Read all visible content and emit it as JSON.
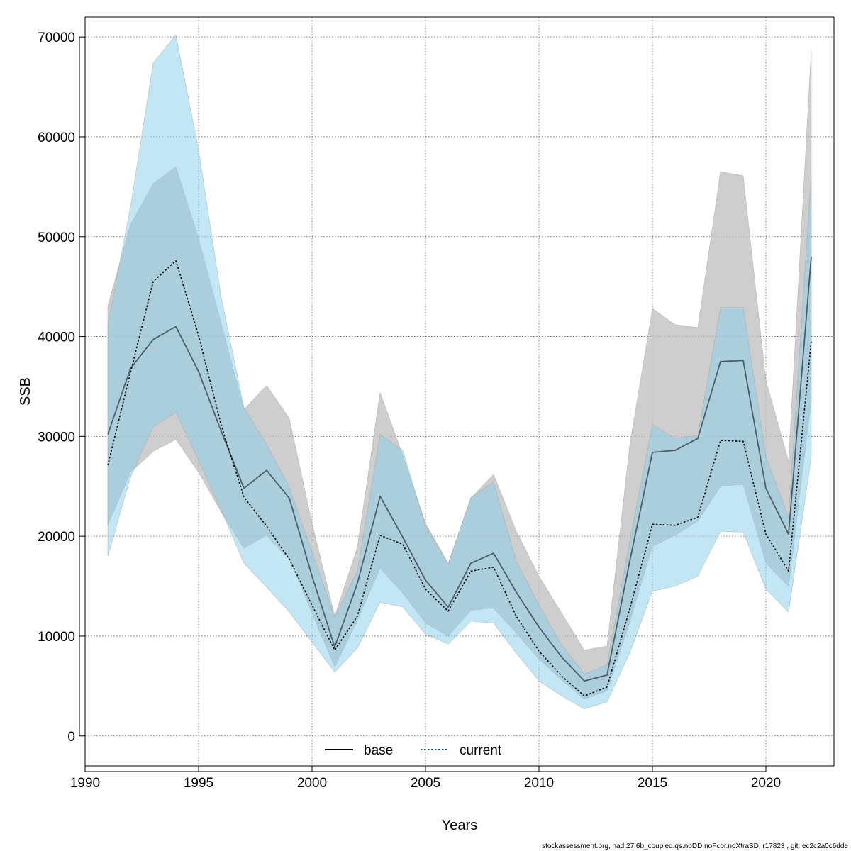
{
  "chart_data": {
    "type": "line",
    "title": "",
    "xlabel": "Years",
    "ylabel": "SSB",
    "xlim": [
      1990,
      2023
    ],
    "ylim": [
      -3000,
      72000
    ],
    "x_ticks": [
      1990,
      1995,
      2000,
      2005,
      2010,
      2015,
      2020
    ],
    "y_ticks": [
      0,
      10000,
      20000,
      30000,
      40000,
      50000,
      60000,
      70000
    ],
    "grid": true,
    "legend_position": "bottom",
    "x": [
      1991,
      1992,
      1993,
      1994,
      1995,
      1996,
      1997,
      1998,
      1999,
      2000,
      2001,
      2002,
      2003,
      2004,
      2005,
      2006,
      2007,
      2008,
      2009,
      2010,
      2011,
      2012,
      2013,
      2014,
      2015,
      2016,
      2017,
      2018,
      2019,
      2020,
      2021,
      2022
    ],
    "series": [
      {
        "name": "base",
        "line_style": "solid",
        "line_color": "#000000",
        "band_color": "#bdbdbd",
        "values": [
          30200,
          36800,
          39700,
          41000,
          36500,
          30500,
          24800,
          26600,
          23800,
          16000,
          8900,
          15300,
          24000,
          19900,
          15600,
          12900,
          17300,
          18300,
          14400,
          10900,
          7900,
          5500,
          6100,
          17500,
          28400,
          28600,
          29800,
          37500,
          37600,
          24800,
          20200,
          48000
        ],
        "lower": [
          21100,
          26400,
          28500,
          29700,
          26400,
          22400,
          18800,
          20100,
          17700,
          12300,
          6900,
          11600,
          16800,
          14300,
          11300,
          10000,
          12600,
          12800,
          10300,
          7700,
          5600,
          3700,
          4500,
          11400,
          19000,
          20100,
          21500,
          25000,
          25200,
          17300,
          15000,
          33700
        ],
        "upper": [
          43100,
          51200,
          55300,
          57000,
          49800,
          41300,
          32700,
          35100,
          31800,
          21300,
          12000,
          18900,
          34400,
          28100,
          21300,
          17300,
          23800,
          26200,
          20500,
          16000,
          12300,
          8600,
          9000,
          29100,
          42800,
          41200,
          40900,
          56500,
          56100,
          35600,
          27500,
          68700
        ]
      },
      {
        "name": "current",
        "line_style": "dotted",
        "line_color": "#000000",
        "band_color": "#87ceeb",
        "values": [
          27100,
          36400,
          45500,
          47600,
          40100,
          31100,
          23900,
          21000,
          17700,
          13100,
          8600,
          12000,
          20100,
          19200,
          14700,
          12500,
          16500,
          16900,
          12000,
          8500,
          6000,
          4000,
          4900,
          12700,
          21200,
          21100,
          21900,
          29600,
          29500,
          20200,
          16500,
          39600
        ],
        "lower": [
          18000,
          25900,
          31000,
          32400,
          27600,
          22600,
          17300,
          14900,
          12400,
          9400,
          6400,
          8800,
          13400,
          12900,
          10200,
          9200,
          11500,
          11300,
          8300,
          5500,
          4000,
          2700,
          3400,
          8300,
          14500,
          15000,
          16000,
          20500,
          20400,
          14700,
          12400,
          27900
        ],
        "upper": [
          41200,
          53000,
          67400,
          70200,
          58700,
          43900,
          32900,
          29200,
          24900,
          18400,
          11900,
          16500,
          30200,
          28600,
          21000,
          17200,
          23900,
          25400,
          17500,
          13100,
          9100,
          6200,
          7100,
          19500,
          31200,
          29800,
          30100,
          42900,
          42900,
          27900,
          21900,
          56200
        ]
      }
    ]
  },
  "footer_text": "stockassessment.org, had.27.6b_coupled.qs.noDD.noFcor.noXtraSD, r17823 , git: ec2c2a0c6dde"
}
